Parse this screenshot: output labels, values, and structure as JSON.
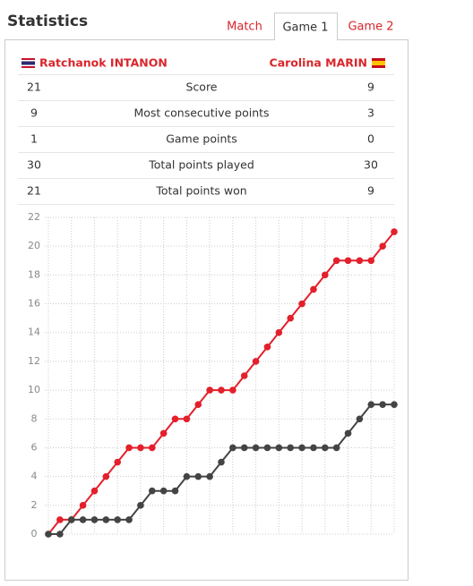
{
  "header": {
    "title": "Statistics"
  },
  "tabs": [
    "Match",
    "Game 1",
    "Game 2"
  ],
  "players": {
    "left": "Ratchanok INTANON",
    "right": "Carolina MARIN"
  },
  "table": {
    "rows": [
      [
        21,
        "Score",
        9
      ],
      [
        9,
        "Most consecutive points",
        3
      ],
      [
        1,
        "Game points",
        0
      ],
      [
        30,
        "Total points played",
        30
      ],
      [
        21,
        "Total points won",
        9
      ]
    ]
  },
  "chart_data": {
    "type": "line",
    "ylim": [
      0,
      22
    ],
    "yticks": [
      0,
      2,
      4,
      6,
      8,
      10,
      12,
      14,
      16,
      18,
      20,
      22
    ],
    "grid": true,
    "series": [
      {
        "color": "#e3202b",
        "values": [
          0,
          1,
          1,
          2,
          3,
          4,
          5,
          6,
          6,
          6,
          7,
          8,
          8,
          9,
          10,
          10,
          10,
          11,
          12,
          13,
          14,
          15,
          16,
          17,
          18,
          19,
          19,
          19,
          19,
          20,
          21
        ]
      },
      {
        "color": "#444444",
        "values": [
          0,
          0,
          1,
          1,
          1,
          1,
          1,
          1,
          2,
          3,
          3,
          3,
          4,
          4,
          4,
          5,
          6,
          6,
          6,
          6,
          6,
          6,
          6,
          6,
          6,
          6,
          7,
          8,
          9,
          9,
          9
        ]
      }
    ]
  }
}
